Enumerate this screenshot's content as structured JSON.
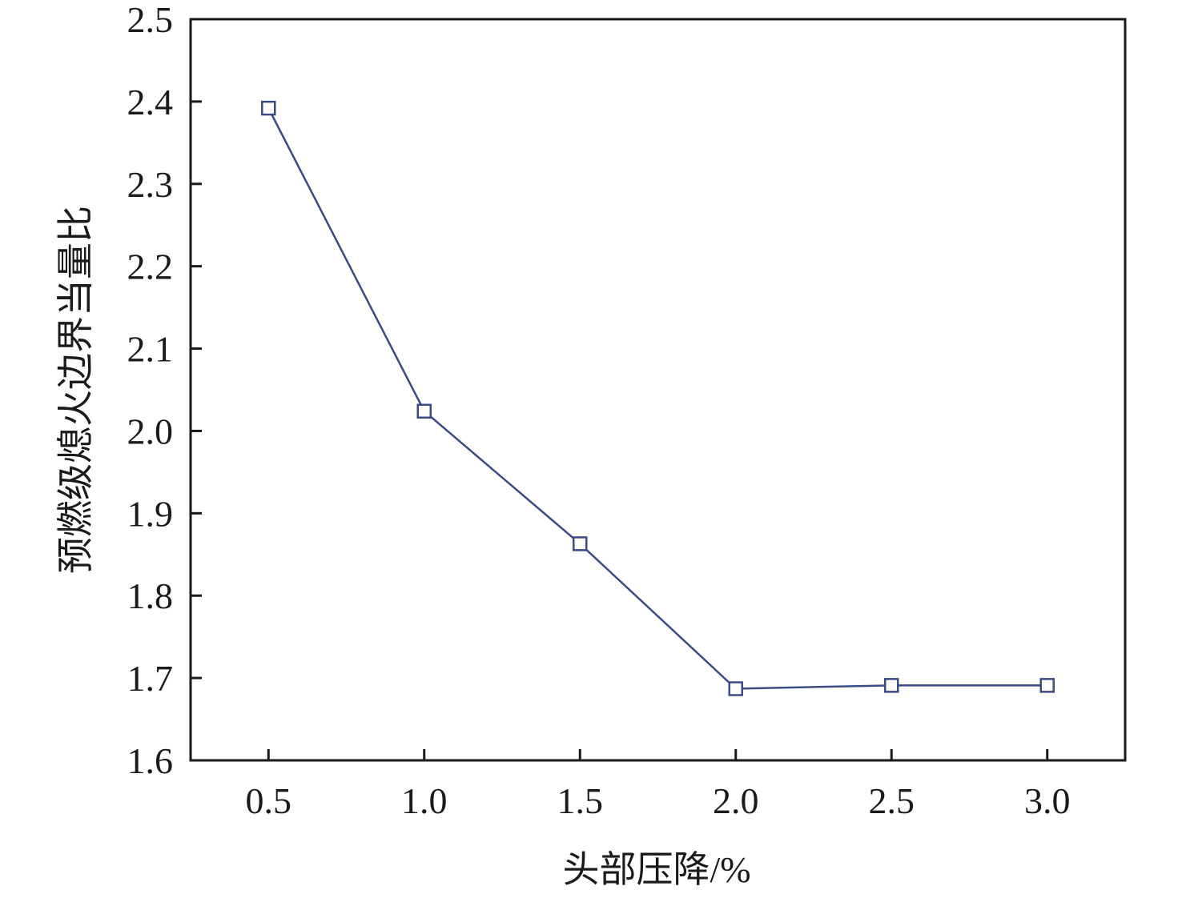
{
  "chart_data": {
    "type": "line",
    "title": "",
    "xlabel": "头部压降/%",
    "ylabel": "预燃级熄火边界当量比",
    "x": [
      0.5,
      1.0,
      1.5,
      2.0,
      2.5,
      3.0
    ],
    "x_tick_labels": [
      "0.5",
      "1.0",
      "1.5",
      "2.0",
      "2.5",
      "3.0"
    ],
    "y_tick_labels": [
      "1.6",
      "1.7",
      "1.8",
      "1.9",
      "2.0",
      "2.1",
      "2.2",
      "2.3",
      "2.4",
      "2.5"
    ],
    "y_ticks": [
      1.6,
      1.7,
      1.8,
      1.9,
      2.0,
      2.1,
      2.2,
      2.3,
      2.4,
      2.5
    ],
    "xlim": [
      0.25,
      3.25
    ],
    "ylim": [
      1.6,
      2.5
    ],
    "grid": false,
    "marker": "hollow-square",
    "series": [
      {
        "values": [
          2.392,
          2.024,
          1.863,
          1.687,
          1.691,
          1.691
        ],
        "color": "#3b4a84"
      }
    ]
  }
}
